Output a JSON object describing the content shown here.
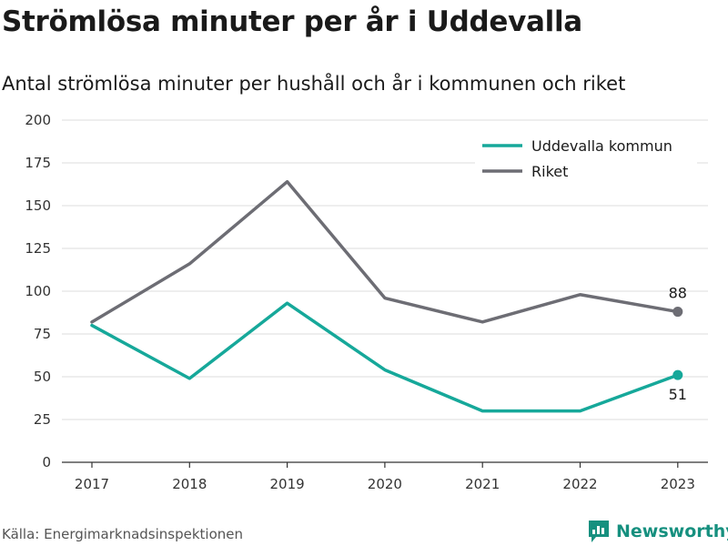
{
  "header": {
    "title": "Strömlösa minuter per år i Uddevalla",
    "subtitle": "Antal strömlösa minuter per hushåll och år i kommunen och riket"
  },
  "footer": {
    "source": "Källa: Energimarknadsinspektionen",
    "brand": "Newsworthy"
  },
  "colors": {
    "uddevalla": "#16a89a",
    "riket": "#6d6d74",
    "grid": "#dddddd",
    "axis": "#333333",
    "brand": "#16907f"
  },
  "chart_data": {
    "type": "line",
    "title": "Strömlösa minuter per år i Uddevalla",
    "subtitle": "Antal strömlösa minuter per hushåll och år i kommunen och riket",
    "x": [
      "2017",
      "2018",
      "2019",
      "2020",
      "2021",
      "2022",
      "2023"
    ],
    "y_ticks": [
      0,
      25,
      50,
      75,
      100,
      125,
      150,
      175,
      200
    ],
    "ylim": [
      0,
      200
    ],
    "grid": "horizontal",
    "legend_position": "top-right",
    "series": [
      {
        "name": "Uddevalla kommun",
        "color": "#16a89a",
        "values": [
          80,
          49,
          93,
          54,
          30,
          30,
          51
        ],
        "end_label": "51"
      },
      {
        "name": "Riket",
        "color": "#6d6d74",
        "values": [
          82,
          116,
          164,
          96,
          82,
          98,
          88
        ],
        "end_label": "88"
      }
    ]
  }
}
